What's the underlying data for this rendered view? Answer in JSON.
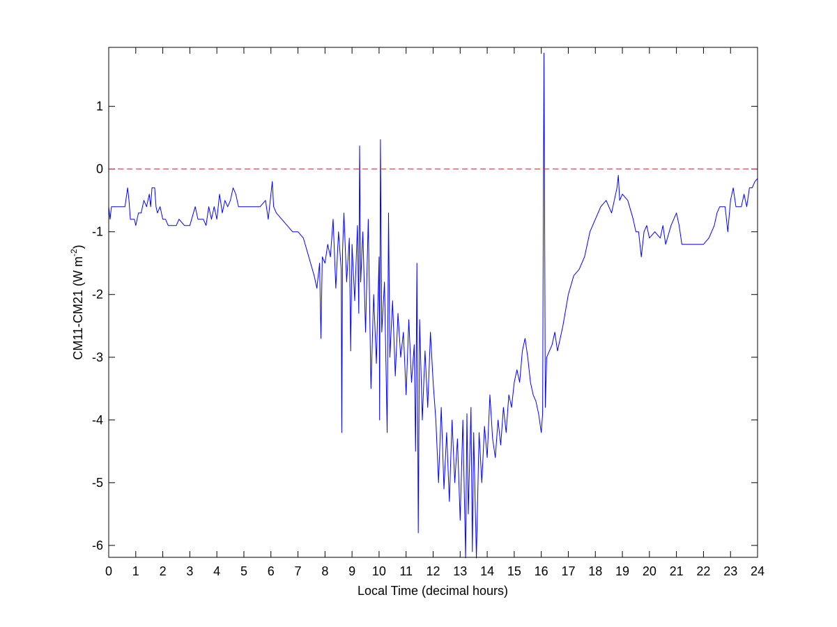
{
  "chart_data": {
    "type": "line",
    "xlabel": "Local Time (decimal hours)",
    "ylabel": "CM11-CM21 (W m",
    "ylabel_sup": "-2",
    "ylabel_end": ")",
    "x": [
      0,
      0.05,
      0.1,
      0.3,
      0.6,
      0.7,
      0.75,
      0.8,
      0.95,
      1.0,
      1.1,
      1.2,
      1.3,
      1.4,
      1.5,
      1.55,
      1.6,
      1.7,
      1.75,
      1.8,
      1.9,
      2.0,
      2.1,
      2.2,
      2.5,
      2.6,
      2.8,
      3.0,
      3.2,
      3.3,
      3.5,
      3.6,
      3.7,
      3.8,
      3.9,
      4.0,
      4.1,
      4.2,
      4.3,
      4.4,
      4.5,
      4.6,
      4.7,
      4.8,
      5.0,
      5.3,
      5.6,
      5.8,
      5.9,
      6.0,
      6.05,
      6.1,
      6.2,
      6.4,
      6.6,
      6.8,
      7.0,
      7.2,
      7.4,
      7.6,
      7.7,
      7.8,
      7.85,
      7.9,
      8.0,
      8.1,
      8.2,
      8.3,
      8.4,
      8.5,
      8.6,
      8.62,
      8.65,
      8.7,
      8.8,
      8.9,
      8.95,
      9.0,
      9.1,
      9.2,
      9.25,
      9.28,
      9.32,
      9.4,
      9.5,
      9.6,
      9.7,
      9.8,
      9.9,
      10.0,
      10.02,
      10.05,
      10.1,
      10.2,
      10.3,
      10.35,
      10.4,
      10.5,
      10.6,
      10.7,
      10.8,
      10.9,
      11.0,
      11.1,
      11.2,
      11.3,
      11.35,
      11.4,
      11.45,
      11.5,
      11.6,
      11.7,
      11.8,
      11.9,
      12.0,
      12.1,
      12.2,
      12.3,
      12.4,
      12.5,
      12.6,
      12.7,
      12.8,
      12.9,
      13.0,
      13.1,
      13.2,
      13.25,
      13.3,
      13.4,
      13.45,
      13.5,
      13.6,
      13.7,
      13.8,
      13.9,
      14.0,
      14.1,
      14.2,
      14.3,
      14.4,
      14.5,
      14.6,
      14.7,
      14.8,
      14.9,
      15.0,
      15.1,
      15.2,
      15.3,
      15.4,
      15.5,
      15.6,
      15.7,
      15.8,
      15.9,
      16.0,
      16.05,
      16.08,
      16.1,
      16.12,
      16.15,
      16.2,
      16.4,
      16.5,
      16.6,
      16.7,
      16.8,
      17.0,
      17.2,
      17.4,
      17.6,
      17.8,
      18.0,
      18.2,
      18.4,
      18.6,
      18.8,
      18.85,
      18.9,
      19.0,
      19.2,
      19.4,
      19.5,
      19.6,
      19.7,
      19.8,
      19.9,
      20.0,
      20.2,
      20.4,
      20.5,
      20.6,
      20.8,
      21.0,
      21.1,
      21.2,
      21.6,
      22.0,
      22.2,
      22.4,
      22.5,
      22.6,
      22.8,
      22.9,
      23.0,
      23.1,
      23.2,
      23.4,
      23.5,
      23.6,
      23.7,
      23.8,
      23.9,
      24.0
    ],
    "values": [
      -0.6,
      -0.8,
      -0.6,
      -0.6,
      -0.6,
      -0.3,
      -0.5,
      -0.8,
      -0.8,
      -0.9,
      -0.7,
      -0.7,
      -0.5,
      -0.6,
      -0.4,
      -0.6,
      -0.3,
      -0.3,
      -0.6,
      -0.7,
      -0.6,
      -0.8,
      -0.8,
      -0.9,
      -0.9,
      -0.8,
      -0.9,
      -0.9,
      -0.6,
      -0.8,
      -0.8,
      -0.9,
      -0.6,
      -0.8,
      -0.6,
      -0.8,
      -0.4,
      -0.7,
      -0.5,
      -0.6,
      -0.5,
      -0.3,
      -0.4,
      -0.6,
      -0.6,
      -0.6,
      -0.6,
      -0.5,
      -0.8,
      -0.4,
      -0.2,
      -0.6,
      -0.7,
      -0.8,
      -0.9,
      -1.0,
      -1.0,
      -1.1,
      -1.4,
      -1.7,
      -1.9,
      -1.5,
      -2.7,
      -1.4,
      -1.5,
      -1.2,
      -1.4,
      -0.8,
      -1.9,
      -1.0,
      -1.6,
      -4.2,
      -1.3,
      -0.7,
      -1.8,
      -1.1,
      -2.9,
      -1.2,
      -2.1,
      -0.9,
      -2.3,
      0.37,
      -1.8,
      -1.0,
      -2.6,
      -0.8,
      -3.5,
      -2.0,
      -3.1,
      -1.4,
      -4.0,
      0.47,
      -2.6,
      -1.8,
      -4.2,
      -0.7,
      -3.0,
      -2.1,
      -3.3,
      -2.3,
      -3.0,
      -2.6,
      -3.6,
      -2.4,
      -3.4,
      -2.8,
      -4.5,
      -1.5,
      -5.8,
      -2.4,
      -4.0,
      -2.9,
      -3.8,
      -2.6,
      -3.4,
      -4.0,
      -5.0,
      -3.8,
      -5.1,
      -4.2,
      -5.3,
      -4.0,
      -5.0,
      -4.3,
      -5.6,
      -4.0,
      -6.2,
      -3.9,
      -5.5,
      -3.8,
      -6.1,
      -4.2,
      -6.2,
      -4.2,
      -5.0,
      -4.1,
      -4.6,
      -3.6,
      -4.3,
      -4.6,
      -4.0,
      -4.4,
      -3.8,
      -4.2,
      -3.6,
      -3.8,
      -3.4,
      -3.2,
      -3.4,
      -2.9,
      -2.7,
      -3.0,
      -3.4,
      -3.6,
      -3.7,
      -3.9,
      -4.2,
      -3.9,
      -0.2,
      1.85,
      -0.3,
      -3.8,
      -3.0,
      -2.8,
      -2.6,
      -2.9,
      -2.7,
      -2.5,
      -2.0,
      -1.7,
      -1.6,
      -1.4,
      -1.0,
      -0.8,
      -0.6,
      -0.5,
      -0.7,
      -0.3,
      -0.1,
      -0.5,
      -0.4,
      -0.5,
      -0.8,
      -1.0,
      -1.0,
      -1.4,
      -1.0,
      -0.9,
      -1.1,
      -1.0,
      -1.1,
      -0.9,
      -1.2,
      -0.9,
      -0.7,
      -0.9,
      -1.2,
      -1.2,
      -1.2,
      -1.1,
      -0.9,
      -0.7,
      -0.6,
      -0.6,
      -1.0,
      -0.5,
      -0.3,
      -0.6,
      -0.6,
      -0.4,
      -0.6,
      -0.3,
      -0.3,
      -0.2,
      -0.15
    ],
    "color": "#0000ff",
    "hline": {
      "value": 0,
      "color": "#cc3333",
      "style": "dashed"
    },
    "xlim": [
      0,
      24
    ],
    "ylim": [
      -6.19,
      1.94
    ],
    "xticks": [
      0,
      1,
      2,
      3,
      4,
      5,
      6,
      7,
      8,
      9,
      10,
      11,
      12,
      13,
      14,
      15,
      16,
      17,
      18,
      19,
      20,
      21,
      22,
      23,
      24
    ],
    "yticks": [
      -6,
      -5,
      -4,
      -3,
      -2,
      -1,
      0,
      1
    ],
    "grid": false
  }
}
